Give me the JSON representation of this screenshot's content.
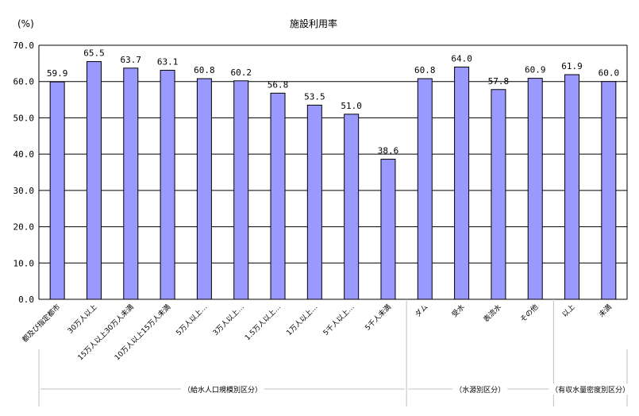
{
  "chart_data": {
    "type": "bar",
    "title": "施設利用率",
    "y_unit": "(%)",
    "ylim": [
      0,
      70
    ],
    "yticks": [
      "0.0",
      "10.0",
      "20.0",
      "30.0",
      "40.0",
      "50.0",
      "60.0",
      "70.0"
    ],
    "grid": true,
    "categories": [
      "都及び指定都市",
      "30万人以上",
      "15万人以上30万人未満",
      "10万人以上15万人未満",
      "5万人以上…",
      "3万人以上…",
      "1.5万人以上…",
      "1万人以上…",
      "5千人以上…",
      "5千人未満",
      "ダム",
      "受水",
      "表流水",
      "その他",
      "以上",
      "未満"
    ],
    "values": [
      59.9,
      65.5,
      63.7,
      63.1,
      60.8,
      60.2,
      56.8,
      53.5,
      51.0,
      38.6,
      60.8,
      64.0,
      57.8,
      60.9,
      61.9,
      60.0
    ],
    "value_labels": [
      "59.9",
      "65.5",
      "63.7",
      "63.1",
      "60.8",
      "60.2",
      "56.8",
      "53.5",
      "51.0",
      "38.6",
      "60.8",
      "64.0",
      "57.8",
      "60.9",
      "61.9",
      "60.0"
    ],
    "groups": [
      {
        "label": "（給水人口規模別区分）",
        "count": 10
      },
      {
        "label": "（水源別区分）",
        "count": 4
      },
      {
        "label": "（有収水量密度別区分）",
        "count": 2
      }
    ],
    "colors": {
      "bar_fill": "#9999ff",
      "bar_stroke": "#000000",
      "grid": "#000000",
      "separator": "#c0c0c0"
    }
  }
}
